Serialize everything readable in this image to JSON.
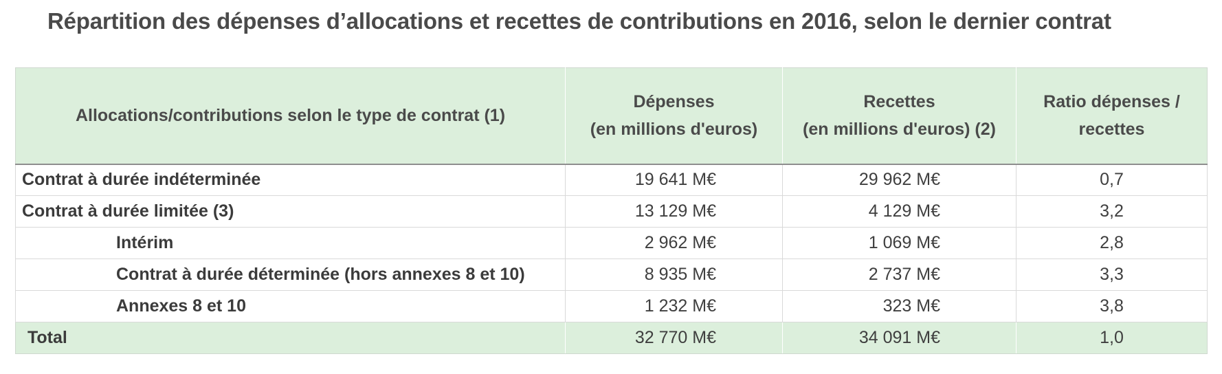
{
  "title": "Répartition des dépenses d’allocations et recettes de contributions en 2016, selon le dernier contrat",
  "table": {
    "headers": {
      "type": "Allocations/contributions selon le type de contrat (1)",
      "depenses_line1": "Dépenses",
      "depenses_line2": "(en millions d'euros)",
      "recettes_line1": "Recettes",
      "recettes_line2": "(en millions d'euros) (2)",
      "ratio_line1": "Ratio dépenses /",
      "ratio_line2": "recettes"
    },
    "rows": [
      {
        "label": "Contrat à durée indéterminée",
        "depenses": "19 641 M€",
        "recettes": "29 962 M€",
        "ratio": "0,7"
      },
      {
        "label": "Contrat à durée limitée (3)",
        "depenses": "13 129 M€",
        "recettes": "4 129 M€",
        "ratio": "3,2"
      },
      {
        "label": "Intérim",
        "depenses": "2 962 M€",
        "recettes": "1 069 M€",
        "ratio": "2,8"
      },
      {
        "label": "Contrat à durée déterminée (hors annexes 8 et 10)",
        "depenses": "8 935 M€",
        "recettes": "2 737 M€",
        "ratio": "3,3"
      },
      {
        "label": "Annexes 8 et 10",
        "depenses": "1 232 M€",
        "recettes": "323 M€",
        "ratio": "3,8"
      }
    ],
    "total": {
      "label": "Total",
      "depenses": "32 770 M€",
      "recettes": "34 091 M€",
      "ratio": "1,0"
    }
  },
  "colors": {
    "header_bg": "#dcefdc",
    "total_bg": "#dcefdc",
    "text": "#3f3f3f"
  }
}
